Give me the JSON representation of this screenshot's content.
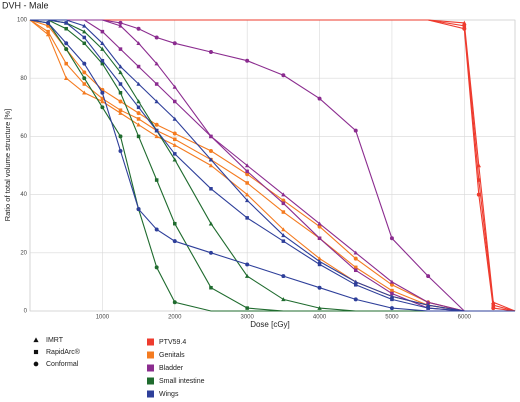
{
  "chart_data": {
    "type": "line",
    "title": "DVH - Male",
    "x_label": "Dose [cGy]",
    "y_label": "Ratio of total volume structure [%]",
    "x": [
      0,
      250,
      500,
      750,
      1000,
      1250,
      1500,
      1750,
      2000,
      2500,
      3000,
      3500,
      4000,
      4500,
      5000,
      5500,
      6000,
      6200,
      6400,
      6700
    ],
    "xlim": [
      0,
      6700
    ],
    "ylim": [
      0,
      100
    ],
    "xticks": [
      1000,
      2000,
      3000,
      4000,
      5000,
      6000
    ],
    "yticks": [
      0,
      20,
      40,
      60,
      80,
      100
    ],
    "grid": true,
    "techniques": [
      {
        "name": "IMRT",
        "marker": "triangle"
      },
      {
        "name": "RapidArc®",
        "marker": "square"
      },
      {
        "name": "Conformal",
        "marker": "circle"
      }
    ],
    "series": [
      {
        "name": "PTV59.4",
        "color": "#ee3b2e",
        "values": [
          [
            100,
            100,
            100,
            100,
            100,
            100,
            100,
            100,
            100,
            100,
            100,
            100,
            100,
            100,
            100,
            100,
            99,
            50,
            3,
            0
          ],
          [
            100,
            100,
            100,
            100,
            100,
            100,
            100,
            100,
            100,
            100,
            100,
            100,
            100,
            100,
            100,
            100,
            98,
            45,
            2,
            0
          ],
          [
            100,
            100,
            100,
            100,
            100,
            100,
            100,
            100,
            100,
            100,
            100,
            100,
            100,
            100,
            100,
            100,
            97,
            40,
            1,
            0
          ]
        ]
      },
      {
        "name": "Genitals",
        "color": "#f47b20",
        "values": [
          [
            100,
            95,
            80,
            75,
            72,
            68,
            64,
            60,
            57,
            50,
            40,
            28,
            18,
            10,
            5,
            2,
            0,
            0,
            0,
            0
          ],
          [
            100,
            96,
            85,
            78,
            73,
            69,
            66,
            62,
            59,
            52,
            44,
            34,
            25,
            15,
            7,
            2,
            0,
            0,
            0,
            0
          ],
          [
            100,
            98,
            90,
            82,
            76,
            72,
            68,
            64,
            61,
            55,
            47,
            38,
            29,
            18,
            9,
            3,
            0,
            0,
            0,
            0
          ]
        ]
      },
      {
        "name": "Bladder",
        "color": "#8b2c8f",
        "values": [
          [
            100,
            100,
            100,
            100,
            100,
            98,
            92,
            85,
            77,
            60,
            50,
            40,
            30,
            20,
            10,
            3,
            0,
            0,
            0,
            0
          ],
          [
            100,
            100,
            100,
            100,
            96,
            90,
            84,
            78,
            72,
            60,
            48,
            37,
            25,
            14,
            6,
            1,
            0,
            0,
            0,
            0
          ],
          [
            100,
            100,
            100,
            100,
            100,
            99,
            97,
            94,
            92,
            89,
            86,
            81,
            73,
            62,
            25,
            12,
            0,
            0,
            0,
            0
          ]
        ]
      },
      {
        "name": "Small intestine",
        "color": "#1f6b2e",
        "values": [
          [
            100,
            100,
            99,
            96,
            90,
            82,
            72,
            62,
            52,
            30,
            12,
            4,
            1,
            0,
            0,
            0,
            0,
            0,
            0,
            0
          ],
          [
            100,
            100,
            97,
            92,
            85,
            75,
            60,
            45,
            30,
            8,
            1,
            0,
            0,
            0,
            0,
            0,
            0,
            0,
            0,
            0
          ],
          [
            100,
            99,
            90,
            80,
            70,
            60,
            35,
            15,
            3,
            0,
            0,
            0,
            0,
            0,
            0,
            0,
            0,
            0,
            0,
            0
          ]
        ]
      },
      {
        "name": "Wings",
        "color": "#2e3f9a",
        "values": [
          [
            100,
            100,
            100,
            98,
            92,
            84,
            78,
            72,
            66,
            52,
            38,
            26,
            17,
            10,
            5,
            2,
            0,
            0,
            0,
            0
          ],
          [
            100,
            100,
            99,
            94,
            86,
            78,
            70,
            62,
            54,
            42,
            32,
            24,
            16,
            9,
            4,
            1,
            0,
            0,
            0,
            0
          ],
          [
            100,
            99,
            92,
            85,
            75,
            55,
            35,
            28,
            24,
            20,
            16,
            12,
            8,
            4,
            1,
            0,
            0,
            0,
            0,
            0
          ]
        ]
      }
    ]
  }
}
